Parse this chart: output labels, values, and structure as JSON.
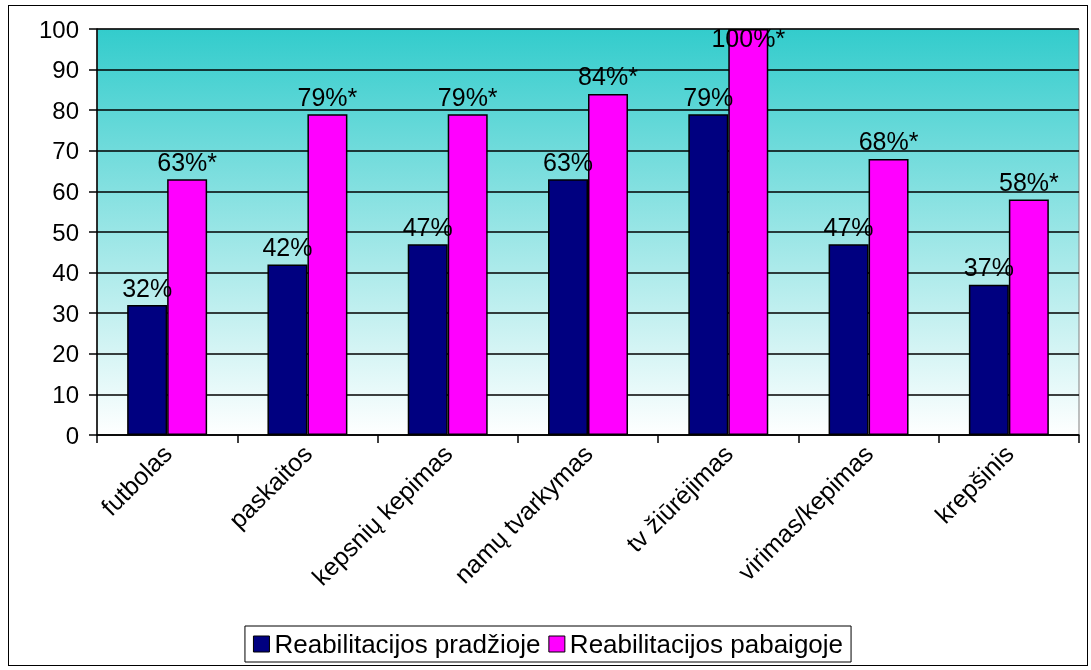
{
  "chart_data": {
    "type": "bar",
    "categories": [
      "futbolas",
      "paskaitos",
      "kepsnių kepimas",
      "namų tvarkymas",
      "tv žiūrėjimas",
      "virimas/kepimas",
      "krepšinis"
    ],
    "series": [
      {
        "name": "Reabilitacijos pradžioje",
        "color": "#000080",
        "values": [
          32,
          42,
          47,
          63,
          79,
          47,
          37
        ],
        "value_labels": [
          "32%",
          "42%",
          "47%",
          "63%",
          "79%",
          "47%",
          "37%"
        ]
      },
      {
        "name": "Reabilitacijos pabaigoje",
        "color": "#ff00ff",
        "values": [
          63,
          79,
          79,
          84,
          100,
          68,
          58
        ],
        "value_labels": [
          "63%*",
          "79%*",
          "79%*",
          "84%*",
          "100%*",
          "68%*",
          "58%*"
        ]
      }
    ],
    "ylim": [
      0,
      100
    ],
    "yticks": [
      0,
      10,
      20,
      30,
      40,
      50,
      60,
      70,
      80,
      90,
      100
    ],
    "grid": "y",
    "legend": "bottom"
  }
}
